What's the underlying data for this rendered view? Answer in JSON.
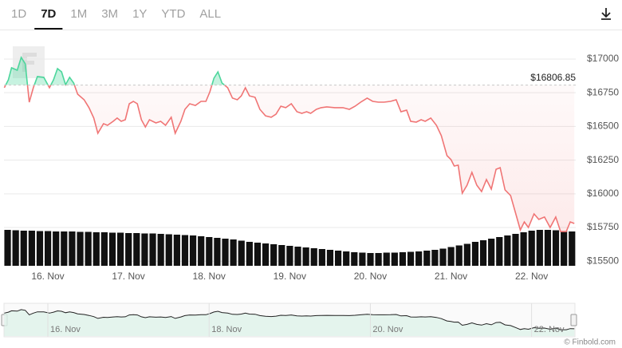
{
  "tabs": [
    "1D",
    "7D",
    "1M",
    "3M",
    "1Y",
    "YTD",
    "ALL"
  ],
  "selected_tab": "7D",
  "credit": "© Finbold.com",
  "chart_data": {
    "type": "line",
    "xlim": [
      15.456,
      22.528
    ],
    "ylim": [
      15466,
      17213
    ],
    "y2lim": [
      0,
      100
    ],
    "grid": true,
    "xticks": [
      {
        "value": 16,
        "label": "16. Nov"
      },
      {
        "value": 17,
        "label": "17. Nov"
      },
      {
        "value": 18,
        "label": "18. Nov"
      },
      {
        "value": 19,
        "label": "19. Nov"
      },
      {
        "value": 20,
        "label": "20. Nov"
      },
      {
        "value": 21,
        "label": "21. Nov"
      },
      {
        "value": 22,
        "label": "22. Nov"
      }
    ],
    "yticks": [
      {
        "value": 15500,
        "label": "$15500"
      },
      {
        "value": 15750,
        "label": "$15750"
      },
      {
        "value": 16000,
        "label": "$16000"
      },
      {
        "value": 16250,
        "label": "$16250"
      },
      {
        "value": 16500,
        "label": "$16500"
      },
      {
        "value": 16750,
        "label": "$16750"
      },
      {
        "value": 17000,
        "label": "$17000"
      }
    ],
    "reference": {
      "value": 16806.85,
      "label": "$16806.85"
    },
    "x": [
      15.46,
      15.51,
      15.55,
      15.62,
      15.67,
      15.72,
      15.77,
      15.82,
      15.87,
      15.95,
      16.02,
      16.07,
      16.12,
      16.17,
      16.22,
      16.27,
      16.32,
      16.37,
      16.45,
      16.51,
      16.57,
      16.62,
      16.69,
      16.74,
      16.81,
      16.86,
      16.91,
      16.96,
      17.01,
      17.06,
      17.11,
      17.16,
      17.21,
      17.26,
      17.34,
      17.4,
      17.46,
      17.53,
      17.58,
      17.65,
      17.7,
      17.76,
      17.83,
      17.9,
      17.96,
      18.01,
      18.06,
      18.11,
      18.16,
      18.23,
      18.29,
      18.35,
      18.4,
      18.45,
      18.5,
      18.57,
      18.63,
      18.7,
      18.77,
      18.83,
      18.89,
      18.95,
      19.02,
      19.09,
      19.15,
      19.21,
      19.26,
      19.33,
      19.39,
      19.46,
      19.56,
      19.66,
      19.74,
      19.81,
      19.88,
      19.96,
      20.03,
      20.1,
      20.17,
      20.25,
      20.32,
      20.38,
      20.45,
      20.5,
      20.57,
      20.63,
      20.68,
      20.75,
      20.82,
      20.88,
      20.95,
      21.0,
      21.04,
      21.09,
      21.14,
      21.2,
      21.26,
      21.32,
      21.38,
      21.44,
      21.5,
      21.56,
      21.61,
      21.67,
      21.74,
      21.81,
      21.86,
      21.91,
      21.96,
      22.03,
      22.09,
      22.16,
      22.23,
      22.3,
      22.36,
      22.43,
      22.48,
      22.53
    ],
    "series": [
      {
        "color": "#f07575",
        "color_above": "#4cd69c",
        "values": [
          16787,
          16846,
          16935,
          16917,
          17012,
          16964,
          16680,
          16787,
          16870,
          16864,
          16787,
          16846,
          16929,
          16905,
          16810,
          16864,
          16822,
          16739,
          16698,
          16639,
          16562,
          16449,
          16520,
          16508,
          16538,
          16562,
          16538,
          16550,
          16668,
          16686,
          16668,
          16550,
          16496,
          16550,
          16526,
          16538,
          16508,
          16568,
          16449,
          16538,
          16627,
          16668,
          16656,
          16686,
          16686,
          16757,
          16858,
          16905,
          16822,
          16787,
          16710,
          16698,
          16727,
          16787,
          16727,
          16716,
          16627,
          16579,
          16568,
          16591,
          16650,
          16639,
          16668,
          16609,
          16597,
          16609,
          16597,
          16627,
          16639,
          16645,
          16639,
          16639,
          16627,
          16650,
          16680,
          16710,
          16686,
          16680,
          16680,
          16686,
          16698,
          16609,
          16621,
          16538,
          16532,
          16550,
          16538,
          16562,
          16508,
          16432,
          16283,
          16254,
          16206,
          16212,
          16005,
          16064,
          16159,
          16064,
          16017,
          16106,
          16035,
          16182,
          16194,
          16029,
          15987,
          15839,
          15732,
          15792,
          15750,
          15851,
          15810,
          15828,
          15750,
          15828,
          15720,
          15720,
          15792,
          15780
        ]
      },
      {
        "type": "bar",
        "axis": "y2",
        "color": "#111111",
        "x": [
          15.5,
          15.6,
          15.7,
          15.8,
          15.9,
          16.0,
          16.1,
          16.2,
          16.3,
          16.4,
          16.5,
          16.6,
          16.7,
          16.8,
          16.9,
          17.0,
          17.1,
          17.2,
          17.3,
          17.4,
          17.5,
          17.6,
          17.7,
          17.8,
          17.9,
          18.0,
          18.1,
          18.2,
          18.3,
          18.4,
          18.5,
          18.6,
          18.7,
          18.8,
          18.9,
          19.0,
          19.1,
          19.2,
          19.3,
          19.4,
          19.5,
          19.6,
          19.7,
          19.8,
          19.9,
          20.0,
          20.1,
          20.2,
          20.3,
          20.4,
          20.5,
          20.6,
          20.7,
          20.8,
          20.9,
          21.0,
          21.1,
          21.2,
          21.3,
          21.4,
          21.5,
          21.6,
          21.7,
          21.8,
          21.9,
          22.0,
          22.1,
          22.2,
          22.3,
          22.4,
          22.5
        ],
        "values": [
          90,
          89,
          88,
          88,
          87,
          87,
          86,
          86,
          86,
          85,
          85,
          84,
          84,
          83,
          83,
          82,
          82,
          81,
          81,
          80,
          79,
          78,
          77,
          76,
          74,
          72,
          70,
          68,
          66,
          63,
          60,
          58,
          56,
          54,
          52,
          50,
          48,
          46,
          44,
          42,
          40,
          38,
          36,
          34,
          33,
          32,
          32,
          33,
          33,
          34,
          35,
          36,
          38,
          40,
          43,
          47,
          51,
          55,
          60,
          64,
          68,
          72,
          76,
          80,
          84,
          88,
          90,
          90,
          89,
          87,
          86
        ]
      }
    ],
    "navigator": {
      "xticks": [
        {
          "value": 16,
          "label": "16. Nov"
        },
        {
          "value": 18,
          "label": "18. Nov"
        },
        {
          "value": 20,
          "label": "20. Nov"
        },
        {
          "value": 22,
          "label": "22. Nov"
        }
      ]
    }
  }
}
